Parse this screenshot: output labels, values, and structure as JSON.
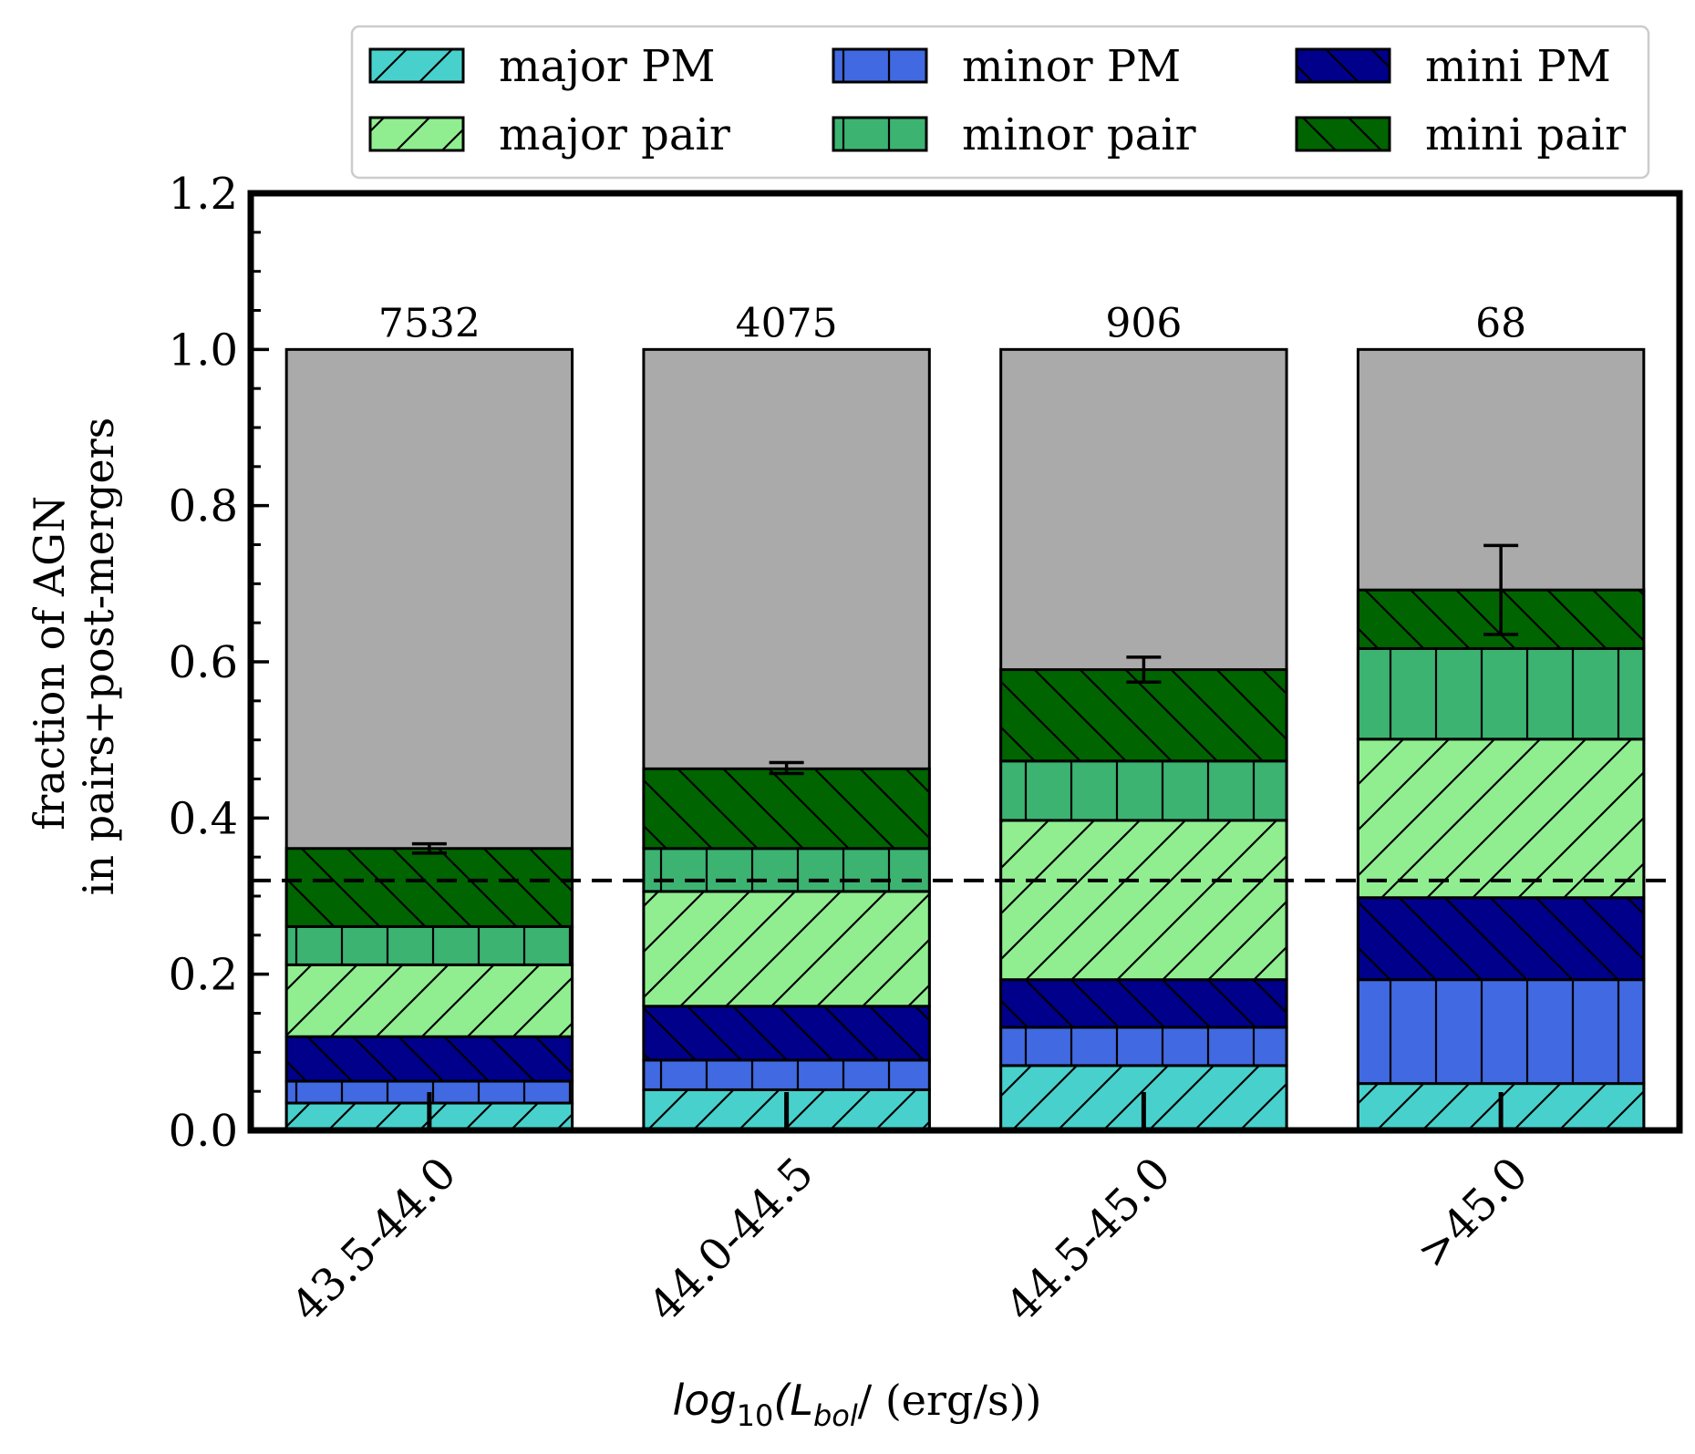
{
  "chart_data": {
    "type": "bar",
    "stacked": true,
    "xlabel_parts": {
      "base": "log",
      "sub1": "10",
      "mid": "(L",
      "sub2": "bol",
      "tail": "/ (erg/s))"
    },
    "ylabel_line1": "fraction of AGN",
    "ylabel_line2": "in pairs+post-mergers",
    "ylim": [
      0,
      1.2
    ],
    "yticks": [
      "0.0",
      "0.2",
      "0.4",
      "0.6",
      "0.8",
      "1.0",
      "1.2"
    ],
    "categories": [
      "43.5-44.0",
      "44.0-44.5",
      "44.5-45.0",
      ">45.0"
    ],
    "counts": [
      "7532",
      "4075",
      "906",
      "68"
    ],
    "reference_line": 0.32,
    "background_total": 1.0,
    "series": [
      {
        "name": "major PM",
        "color": "#48d1cc",
        "hatch": "forward",
        "values": [
          0.035,
          0.052,
          0.083,
          0.06
        ]
      },
      {
        "name": "minor PM",
        "color": "#4169e1",
        "hatch": "vertical",
        "values": [
          0.028,
          0.038,
          0.049,
          0.133
        ]
      },
      {
        "name": "mini PM",
        "color": "#00008b",
        "hatch": "back",
        "values": [
          0.057,
          0.069,
          0.061,
          0.105
        ]
      },
      {
        "name": "major pair",
        "color": "#90ee90",
        "hatch": "forward",
        "values": [
          0.092,
          0.147,
          0.204,
          0.203
        ]
      },
      {
        "name": "minor pair",
        "color": "#3cb371",
        "hatch": "vertical",
        "values": [
          0.049,
          0.055,
          0.076,
          0.116
        ]
      },
      {
        "name": "mini pair",
        "color": "#006400",
        "hatch": "back",
        "values": [
          0.1,
          0.102,
          0.117,
          0.075
        ]
      }
    ],
    "remainder_color": "#aaaaaa",
    "error_bars": [
      {
        "center": 0.361,
        "low": 0.355,
        "high": 0.367
      },
      {
        "center": 0.464,
        "low": 0.457,
        "high": 0.471
      },
      {
        "center": 0.59,
        "low": 0.574,
        "high": 0.606
      },
      {
        "center": 0.692,
        "low": 0.635,
        "high": 0.749
      }
    ],
    "legend_position": "top",
    "legend_columns": 3,
    "legend_order": [
      0,
      3,
      1,
      4,
      2,
      5
    ]
  }
}
